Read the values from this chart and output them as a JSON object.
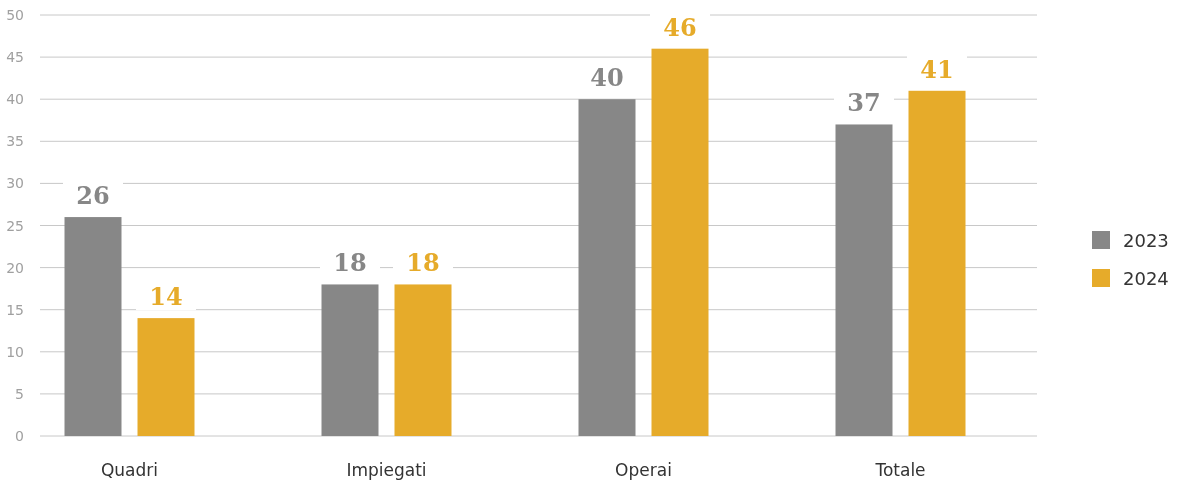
{
  "chart_data": {
    "type": "bar",
    "categories": [
      "Quadri",
      "Impiegati",
      "Operai",
      "Totale"
    ],
    "series": [
      {
        "name": "2023",
        "color": "#878787",
        "values": [
          26,
          18,
          40,
          37
        ]
      },
      {
        "name": "2024",
        "color": "#e6ab2a",
        "values": [
          14,
          18,
          46,
          41
        ]
      }
    ],
    "ylim": [
      0,
      50
    ],
    "yticks": [
      0,
      5,
      10,
      15,
      20,
      25,
      30,
      35,
      40,
      45,
      50
    ],
    "grid": "y",
    "legend": "right",
    "data_labels": true
  }
}
